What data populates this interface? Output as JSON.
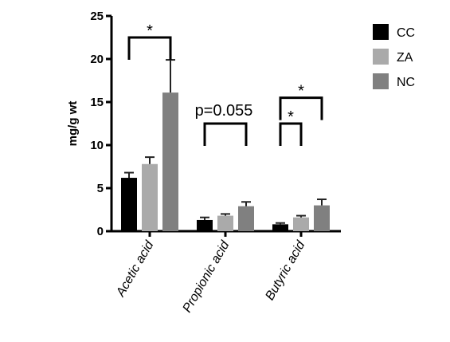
{
  "chart_data": {
    "type": "bar",
    "ylabel": "mg/g wt",
    "ylim": [
      0,
      25
    ],
    "yticks": [
      0,
      5,
      10,
      15,
      20,
      25
    ],
    "categories": [
      "Acetic acid",
      "Propionic acid",
      "Butyric acid"
    ],
    "series": [
      {
        "name": "CC",
        "color": "#000000",
        "values": [
          6.2,
          1.3,
          0.8
        ],
        "errors": [
          0.6,
          0.3,
          0.15
        ]
      },
      {
        "name": "ZA",
        "color": "#aaaaaa",
        "values": [
          7.8,
          1.8,
          1.6
        ],
        "errors": [
          0.8,
          0.2,
          0.2
        ]
      },
      {
        "name": "NC",
        "color": "#808080",
        "values": [
          16.1,
          2.9,
          3.0
        ],
        "errors": [
          3.8,
          0.5,
          0.7
        ]
      }
    ],
    "legend": "top-right",
    "annotations": [
      {
        "text": "*",
        "category": 0,
        "from_series": 0,
        "to_series": 2,
        "level": 22.5
      },
      {
        "text": "p=0.055",
        "category": 1,
        "from_series": 0,
        "to_series": 2,
        "level": 12.5
      },
      {
        "text": "*",
        "category": 2,
        "from_series": 0,
        "to_series": 2,
        "level": 15.5
      },
      {
        "text": "*",
        "category": 2,
        "from_series": 0,
        "to_series": 1,
        "level": 12.5
      }
    ]
  }
}
